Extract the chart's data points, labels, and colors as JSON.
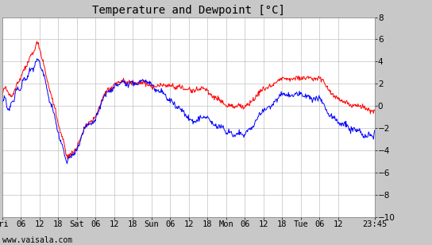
{
  "title": "Temperature and Dewpoint [°C]",
  "ylim": [
    -10,
    8
  ],
  "yticks": [
    -10,
    -8,
    -6,
    -4,
    -2,
    0,
    2,
    4,
    6,
    8
  ],
  "x_tick_labels": [
    "Fri",
    "06",
    "12",
    "18",
    "Sat",
    "06",
    "12",
    "18",
    "Sun",
    "06",
    "12",
    "18",
    "Mon",
    "06",
    "12",
    "18",
    "Tue",
    "06",
    "12",
    "23:45"
  ],
  "x_tick_positions": [
    0,
    6,
    12,
    18,
    24,
    30,
    36,
    42,
    48,
    54,
    60,
    66,
    72,
    78,
    84,
    90,
    96,
    102,
    108,
    119.75
  ],
  "total_hours": 119.75,
  "background_color": "#c8c8c8",
  "plot_bg_color": "#ffffff",
  "grid_color": "#c0c0c0",
  "temp_color": "#ff0000",
  "dewp_color": "#0000ff",
  "line_width": 0.7,
  "watermark": "www.vaisala.com",
  "title_fontsize": 10,
  "tick_fontsize": 7.5,
  "watermark_fontsize": 7
}
